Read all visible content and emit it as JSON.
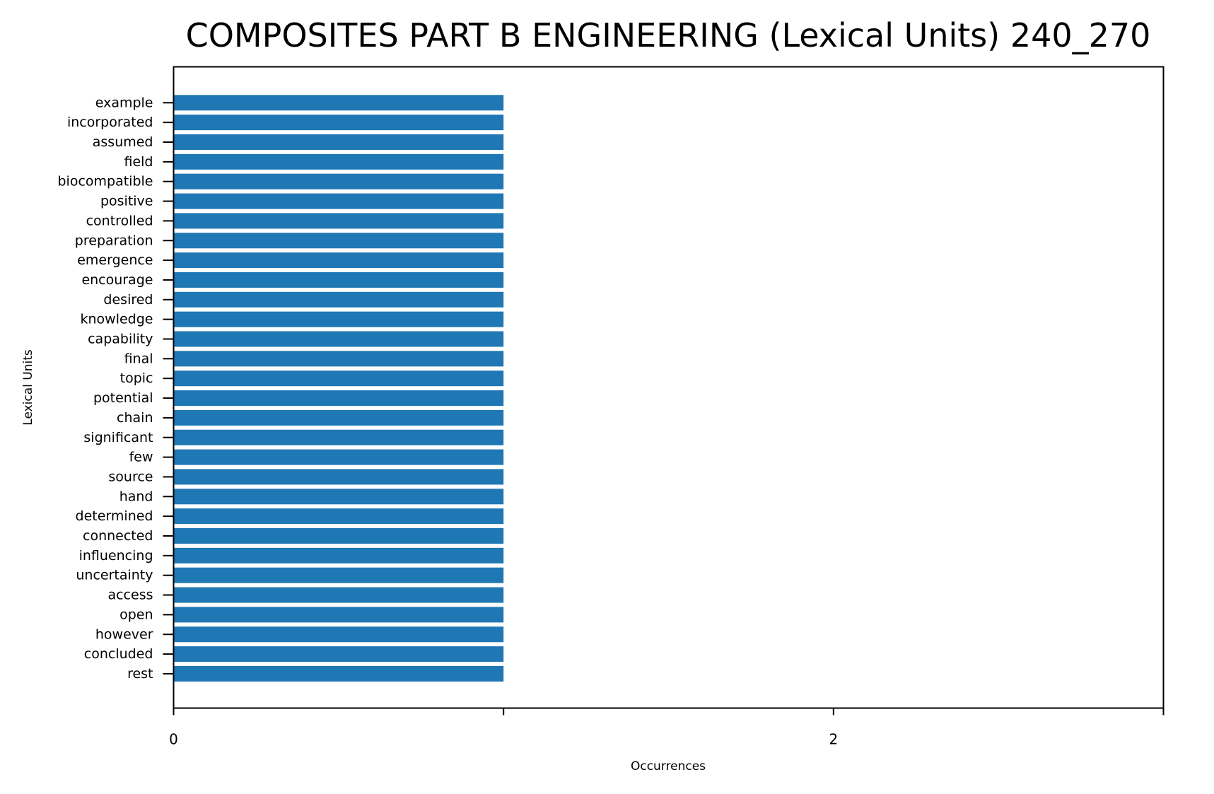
{
  "chart_data": {
    "type": "bar",
    "orientation": "horizontal",
    "title": "COMPOSITES PART B ENGINEERING (Lexical Units) 240_270",
    "xlabel": "Occurrences",
    "ylabel": "Lexical Units",
    "xlim": [
      0,
      3
    ],
    "x_ticks": [
      0,
      1,
      2,
      3
    ],
    "x_tick_labels": [
      "0",
      "",
      "2",
      ""
    ],
    "grid": false,
    "legend": "none",
    "bar_color": "#1f77b4",
    "categories": [
      "example",
      "incorporated",
      "assumed",
      "field",
      "biocompatible",
      "positive",
      "controlled",
      "preparation",
      "emergence",
      "encourage",
      "desired",
      "knowledge",
      "capability",
      "final",
      "topic",
      "potential",
      "chain",
      "significant",
      "few",
      "source",
      "hand",
      "determined",
      "connected",
      "influencing",
      "uncertainty",
      "access",
      "open",
      "however",
      "concluded",
      "rest"
    ],
    "values": [
      1,
      1,
      1,
      1,
      1,
      1,
      1,
      1,
      1,
      1,
      1,
      1,
      1,
      1,
      1,
      1,
      1,
      1,
      1,
      1,
      1,
      1,
      1,
      1,
      1,
      1,
      1,
      1,
      1,
      1
    ]
  }
}
